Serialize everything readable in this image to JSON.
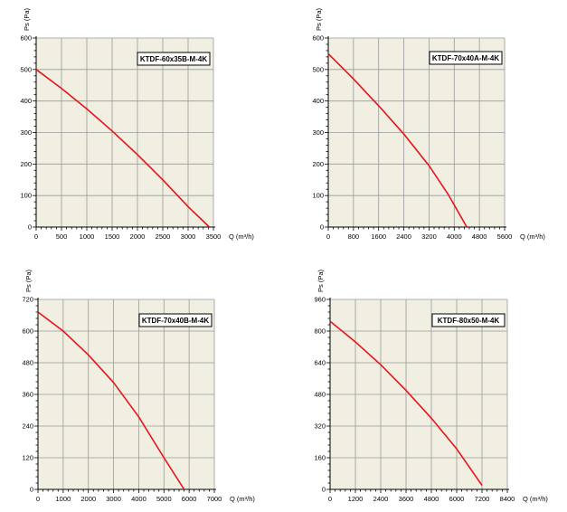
{
  "chart_data": [
    {
      "type": "line",
      "label": "KTDF-60x35B-M-4K",
      "xlabel": "Q (m³/h)",
      "ylabel": "Ps (Pa)",
      "xlim": [
        0,
        3500
      ],
      "ylim": [
        0,
        600
      ],
      "xticks": [
        0,
        500,
        1000,
        1500,
        2000,
        2500,
        3000,
        3500
      ],
      "yticks": [
        0,
        100,
        200,
        300,
        400,
        500,
        600
      ],
      "grid": true,
      "legend": "top-right",
      "color": "#e8141a",
      "x": [
        0,
        500,
        1000,
        1500,
        2000,
        2500,
        3000,
        3420
      ],
      "y": [
        500,
        440,
        375,
        305,
        230,
        150,
        65,
        0
      ]
    },
    {
      "type": "line",
      "label": "KTDF-70x40A-M-4K",
      "xlabel": "Q (m³/h)",
      "ylabel": "Ps (Pa)",
      "xlim": [
        0,
        5600
      ],
      "ylim": [
        0,
        600
      ],
      "xticks": [
        0,
        800,
        1600,
        2400,
        3200,
        4000,
        4800,
        5600
      ],
      "yticks": [
        0,
        100,
        200,
        300,
        400,
        500,
        600
      ],
      "grid": true,
      "legend": "top-right",
      "color": "#e8141a",
      "x": [
        0,
        800,
        1600,
        2400,
        3200,
        3800,
        4400
      ],
      "y": [
        550,
        470,
        385,
        295,
        195,
        105,
        0
      ]
    },
    {
      "type": "line",
      "label": "KTDF-70x40B-M-4K",
      "xlabel": "Q (m³/h)",
      "ylabel": "Ps (Pa)",
      "xlim": [
        0,
        7000
      ],
      "ylim": [
        0,
        720
      ],
      "xticks": [
        0,
        1000,
        2000,
        3000,
        4000,
        5000,
        6000,
        7000
      ],
      "yticks": [
        0,
        120,
        240,
        360,
        480,
        600,
        720
      ],
      "grid": true,
      "legend": "top-right",
      "color": "#e8141a",
      "x": [
        0,
        1000,
        2000,
        3000,
        4000,
        5000,
        5800
      ],
      "y": [
        672,
        600,
        510,
        405,
        275,
        120,
        0
      ]
    },
    {
      "type": "line",
      "label": "KTDF-80x50-M-4K",
      "xlabel": "Q (m³/h)",
      "ylabel": "Ps (Pa)",
      "xlim": [
        0,
        8400
      ],
      "ylim": [
        0,
        960
      ],
      "xticks": [
        0,
        1200,
        2400,
        3600,
        4800,
        6000,
        7200,
        8400
      ],
      "yticks": [
        0,
        160,
        320,
        480,
        640,
        800,
        960
      ],
      "grid": true,
      "legend": "top-right",
      "color": "#e8141a",
      "x": [
        0,
        1200,
        2400,
        3600,
        4800,
        6000,
        7200
      ],
      "y": [
        850,
        745,
        630,
        500,
        360,
        205,
        20
      ]
    }
  ]
}
